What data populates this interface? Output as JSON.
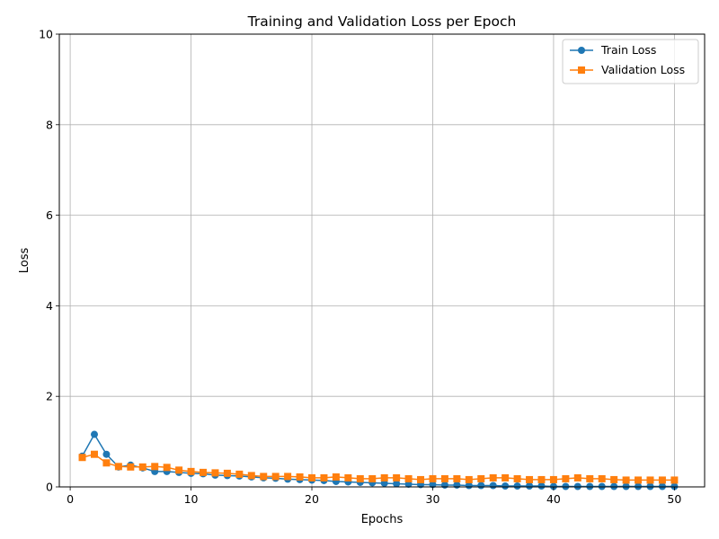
{
  "chart_data": {
    "type": "line",
    "title": "Training and Validation Loss per Epoch",
    "xlabel": "Epochs",
    "ylabel": "Loss",
    "xlim": [
      -0.9,
      52.5
    ],
    "ylim": [
      0,
      10
    ],
    "xticks": [
      0,
      10,
      20,
      30,
      40,
      50
    ],
    "yticks": [
      0,
      2,
      4,
      6,
      8,
      10
    ],
    "grid": true,
    "legend_position": "upper right",
    "x": [
      1,
      2,
      3,
      4,
      5,
      6,
      7,
      8,
      9,
      10,
      11,
      12,
      13,
      14,
      15,
      16,
      17,
      18,
      19,
      20,
      21,
      22,
      23,
      24,
      25,
      26,
      27,
      28,
      29,
      30,
      31,
      32,
      33,
      34,
      35,
      36,
      37,
      38,
      39,
      40,
      41,
      42,
      43,
      44,
      45,
      46,
      47,
      48,
      49,
      50
    ],
    "series": [
      {
        "name": "Train Loss",
        "color": "#1f77b4",
        "marker": "circle",
        "values": [
          0.68,
          1.16,
          0.72,
          0.44,
          0.48,
          0.42,
          0.34,
          0.34,
          0.32,
          0.3,
          0.29,
          0.26,
          0.25,
          0.24,
          0.22,
          0.2,
          0.19,
          0.17,
          0.16,
          0.15,
          0.14,
          0.12,
          0.11,
          0.1,
          0.09,
          0.08,
          0.07,
          0.06,
          0.05,
          0.05,
          0.04,
          0.04,
          0.03,
          0.03,
          0.03,
          0.02,
          0.02,
          0.02,
          0.02,
          0.01,
          0.01,
          0.01,
          0.01,
          0.01,
          0.01,
          0.01,
          0.01,
          0.01,
          0.01,
          0.01
        ]
      },
      {
        "name": "Validation Loss",
        "color": "#ff7f0e",
        "marker": "square",
        "values": [
          0.65,
          0.72,
          0.53,
          0.45,
          0.44,
          0.44,
          0.45,
          0.43,
          0.37,
          0.34,
          0.32,
          0.31,
          0.3,
          0.28,
          0.25,
          0.23,
          0.23,
          0.23,
          0.22,
          0.2,
          0.2,
          0.22,
          0.2,
          0.18,
          0.18,
          0.2,
          0.2,
          0.18,
          0.16,
          0.18,
          0.18,
          0.18,
          0.16,
          0.18,
          0.2,
          0.2,
          0.18,
          0.16,
          0.16,
          0.16,
          0.18,
          0.2,
          0.18,
          0.18,
          0.16,
          0.15,
          0.15,
          0.15,
          0.15,
          0.15
        ]
      }
    ]
  }
}
